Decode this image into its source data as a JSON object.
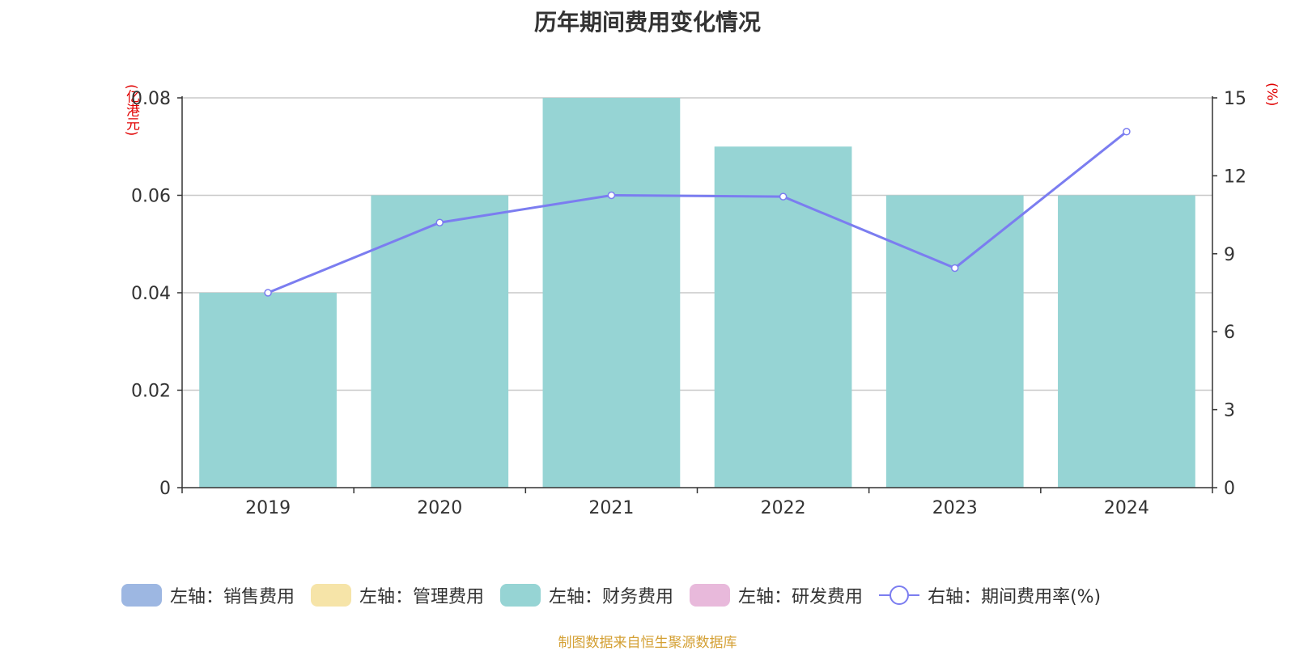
{
  "title": "历年期间费用变化情况",
  "units": {
    "left": "(亿港元)",
    "right": "(%)"
  },
  "legend": [
    {
      "label": "左轴：销售费用",
      "color": "#9db7e2",
      "kind": "bar"
    },
    {
      "label": "左轴：管理费用",
      "color": "#f6e4a8",
      "kind": "bar"
    },
    {
      "label": "左轴：财务费用",
      "color": "#96d4d4",
      "kind": "bar"
    },
    {
      "label": "左轴：研发费用",
      "color": "#e8b9db",
      "kind": "bar"
    },
    {
      "label": "右轴：期间费用率(%)",
      "color": "#7b7df0",
      "kind": "line"
    }
  ],
  "source": "制图数据来自恒生聚源数据库",
  "chart_data": {
    "type": "bar",
    "categories": [
      "2019",
      "2020",
      "2021",
      "2022",
      "2023",
      "2024"
    ],
    "series": [
      {
        "name": "左轴：财务费用",
        "axis": "left",
        "type": "bar",
        "color": "#96d4d4",
        "values": [
          0.04,
          0.06,
          0.08,
          0.07,
          0.06,
          0.06
        ]
      },
      {
        "name": "右轴：期间费用率(%)",
        "axis": "right",
        "type": "line",
        "color": "#7b7df0",
        "values": [
          7.5,
          10.2,
          11.25,
          11.2,
          8.45,
          13.7
        ]
      }
    ],
    "left_axis": {
      "ylim": [
        0,
        0.08
      ],
      "ticks": [
        "0",
        "0.02",
        "0.04",
        "0.06",
        "0.08"
      ],
      "tick_values": [
        0,
        0.02,
        0.04,
        0.06,
        0.08
      ]
    },
    "right_axis": {
      "ylim": [
        0,
        15
      ],
      "ticks": [
        "0",
        "3",
        "6",
        "9",
        "12",
        "15"
      ],
      "tick_values": [
        0,
        3,
        6,
        9,
        12,
        15
      ]
    },
    "grid": true,
    "legend_position": "bottom"
  }
}
